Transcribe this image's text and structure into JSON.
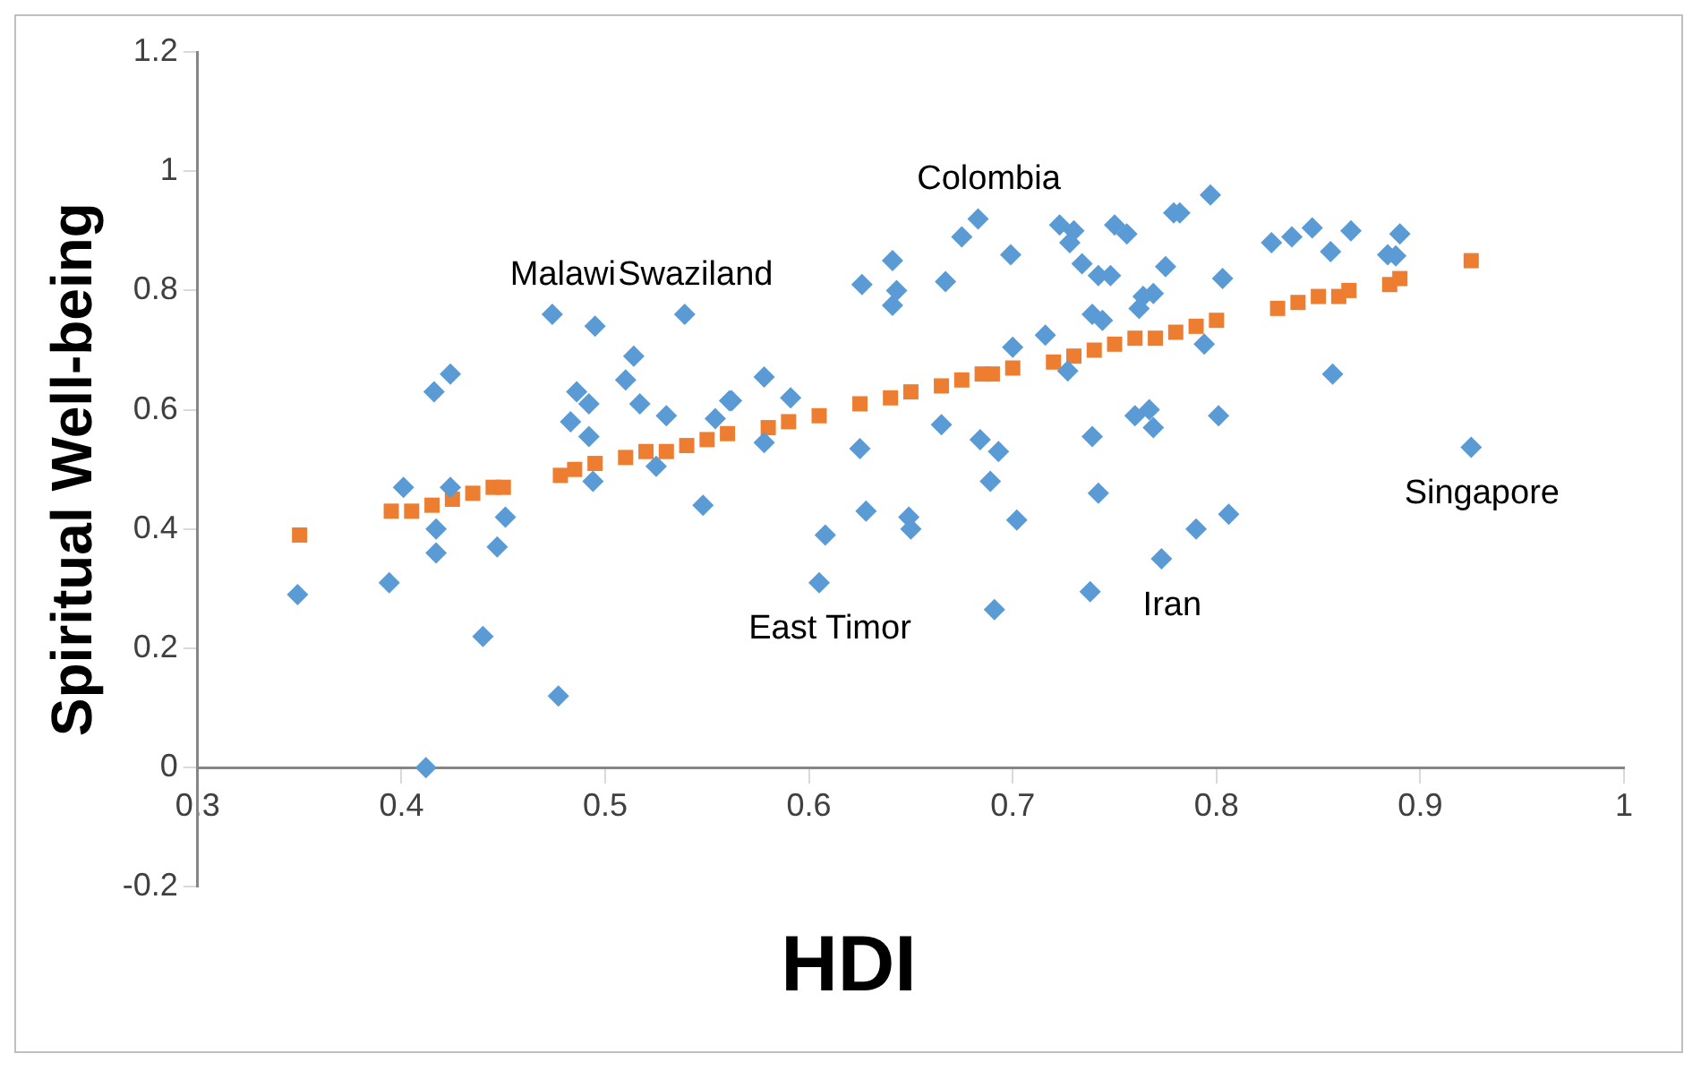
{
  "chart_data": {
    "type": "scatter",
    "xlabel": "HDI",
    "ylabel": "Spiritual Well-being",
    "xlim": [
      0.3,
      1
    ],
    "xticks": [
      0.3,
      0.4,
      0.5,
      0.6,
      0.7,
      0.8,
      0.9,
      1
    ],
    "ylim": [
      -0.2,
      1.2
    ],
    "yticks": [
      -0.2,
      0,
      0.2,
      0.4,
      0.6,
      0.8,
      1,
      1.2
    ],
    "grid": false,
    "legend": false,
    "series": [
      {
        "color": "#5b9bd5",
        "marker": "diamond",
        "x": [
          0.349,
          0.394,
          0.401,
          0.416,
          0.424,
          0.417,
          0.417,
          0.412,
          0.44,
          0.447,
          0.451,
          0.424,
          0.477,
          0.474,
          0.495,
          0.483,
          0.486,
          0.492,
          0.492,
          0.494,
          0.514,
          0.51,
          0.517,
          0.53,
          0.525,
          0.539,
          0.548,
          0.554,
          0.561,
          0.562,
          0.578,
          0.578,
          0.591,
          0.605,
          0.608,
          0.625,
          0.626,
          0.628,
          0.641,
          0.641,
          0.643,
          0.649,
          0.65,
          0.665,
          0.667,
          0.675,
          0.683,
          0.684,
          0.689,
          0.691,
          0.693,
          0.699,
          0.7,
          0.702,
          0.716,
          0.723,
          0.727,
          0.728,
          0.73,
          0.734,
          0.738,
          0.739,
          0.739,
          0.742,
          0.742,
          0.744,
          0.748,
          0.75,
          0.756,
          0.76,
          0.762,
          0.764,
          0.767,
          0.769,
          0.769,
          0.773,
          0.775,
          0.779,
          0.782,
          0.79,
          0.794,
          0.797,
          0.801,
          0.803,
          0.806,
          0.827,
          0.837,
          0.847,
          0.856,
          0.857,
          0.866,
          0.884,
          0.888,
          0.89,
          0.925
        ],
        "values": [
          0.29,
          0.31,
          0.47,
          0.63,
          0.66,
          0.4,
          0.36,
          0.0,
          0.22,
          0.37,
          0.42,
          0.47,
          0.12,
          0.76,
          0.74,
          0.58,
          0.63,
          0.61,
          0.555,
          0.48,
          0.69,
          0.65,
          0.61,
          0.59,
          0.505,
          0.76,
          0.44,
          0.585,
          0.615,
          0.615,
          0.655,
          0.545,
          0.62,
          0.31,
          0.39,
          0.535,
          0.81,
          0.43,
          0.85,
          0.775,
          0.8,
          0.42,
          0.4,
          0.575,
          0.815,
          0.89,
          0.92,
          0.55,
          0.48,
          0.265,
          0.53,
          0.86,
          0.705,
          0.415,
          0.725,
          0.91,
          0.665,
          0.88,
          0.9,
          0.845,
          0.295,
          0.76,
          0.555,
          0.825,
          0.46,
          0.75,
          0.825,
          0.91,
          0.895,
          0.59,
          0.77,
          0.79,
          0.6,
          0.795,
          0.57,
          0.35,
          0.84,
          0.93,
          0.93,
          0.4,
          0.71,
          0.96,
          0.59,
          0.82,
          0.425,
          0.88,
          0.89,
          0.905,
          0.865,
          0.66,
          0.9,
          0.86,
          0.858,
          0.895,
          0.537
        ]
      },
      {
        "color": "#ed7d31",
        "marker": "square",
        "x": [
          0.35,
          0.395,
          0.405,
          0.415,
          0.425,
          0.435,
          0.445,
          0.45,
          0.478,
          0.485,
          0.495,
          0.51,
          0.52,
          0.53,
          0.54,
          0.55,
          0.56,
          0.58,
          0.59,
          0.605,
          0.625,
          0.64,
          0.65,
          0.665,
          0.675,
          0.685,
          0.69,
          0.7,
          0.72,
          0.73,
          0.74,
          0.75,
          0.76,
          0.77,
          0.78,
          0.79,
          0.8,
          0.83,
          0.84,
          0.85,
          0.86,
          0.865,
          0.885,
          0.89,
          0.925
        ],
        "values": [
          0.39,
          0.43,
          0.43,
          0.44,
          0.45,
          0.46,
          0.47,
          0.47,
          0.49,
          0.5,
          0.51,
          0.52,
          0.53,
          0.53,
          0.54,
          0.55,
          0.56,
          0.57,
          0.58,
          0.59,
          0.61,
          0.62,
          0.63,
          0.64,
          0.65,
          0.66,
          0.66,
          0.67,
          0.68,
          0.69,
          0.7,
          0.71,
          0.72,
          0.72,
          0.73,
          0.74,
          0.75,
          0.77,
          0.78,
          0.79,
          0.79,
          0.8,
          0.81,
          0.82,
          0.85
        ]
      }
    ],
    "annotations": [
      {
        "text": "Malawi",
        "x": 0.474,
        "y": 0.76
      },
      {
        "text": "Swaziland",
        "x": 0.539,
        "y": 0.76
      },
      {
        "text": "Colombia",
        "x": 0.683,
        "y": 0.92
      },
      {
        "text": "East Timor",
        "x": 0.605,
        "y": 0.31
      },
      {
        "text": "Iran",
        "x": 0.773,
        "y": 0.35
      },
      {
        "text": "Singapore",
        "x": 0.925,
        "y": 0.537
      }
    ]
  }
}
